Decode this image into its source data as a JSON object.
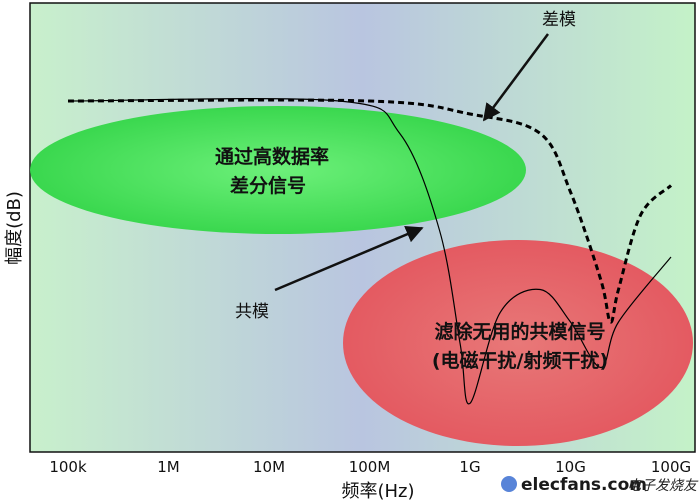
{
  "chart_data": {
    "type": "line",
    "title": "",
    "xlabel": "频率(Hz)",
    "ylabel": "幅度(dB)",
    "xscale": "log",
    "x_ticks": [
      "100k",
      "1M",
      "10M",
      "100M",
      "1G",
      "10G",
      "100G"
    ],
    "x_tick_values_hz": [
      100000.0,
      1000000.0,
      10000000.0,
      100000000.0,
      1000000000.0,
      10000000000.0,
      100000000000.0
    ],
    "grid": false,
    "series": [
      {
        "name": "差模",
        "style": "dashed",
        "color": "#000000",
        "points": [
          [
            100000.0,
            0
          ],
          [
            100000000.0,
            0
          ],
          [
            1000000000.0,
            -4
          ],
          [
            5000000000.0,
            -10
          ],
          [
            10000000000.0,
            -28
          ],
          [
            20000000000.0,
            -55
          ],
          [
            25000000000.0,
            -68
          ],
          [
            30000000000.0,
            -58
          ],
          [
            50000000000.0,
            -35
          ],
          [
            100000000000.0,
            -26
          ]
        ]
      },
      {
        "name": "共模",
        "style": "solid",
        "color": "#000000",
        "points": [
          [
            100000.0,
            0
          ],
          [
            50000000.0,
            0
          ],
          [
            200000000.0,
            -10
          ],
          [
            500000000.0,
            -40
          ],
          [
            800000000.0,
            -75
          ],
          [
            1000000000.0,
            -93
          ],
          [
            2000000000.0,
            -65
          ],
          [
            5000000000.0,
            -58
          ],
          [
            10000000000.0,
            -68
          ],
          [
            20000000000.0,
            -82
          ],
          [
            30000000000.0,
            -68
          ],
          [
            100000000000.0,
            -48
          ]
        ]
      }
    ],
    "regions": [
      {
        "label_lines": [
          "通过高数据率",
          "差分信号"
        ],
        "color": "#3fdc50"
      },
      {
        "label_lines": [
          "滤除无用的共模信号",
          "(电磁干扰/射频干扰)"
        ],
        "color": "#e05060"
      }
    ],
    "annotations": [
      "差模",
      "共模"
    ]
  },
  "watermark": {
    "site": "elecfans.com",
    "cn": "电子发烧友"
  }
}
